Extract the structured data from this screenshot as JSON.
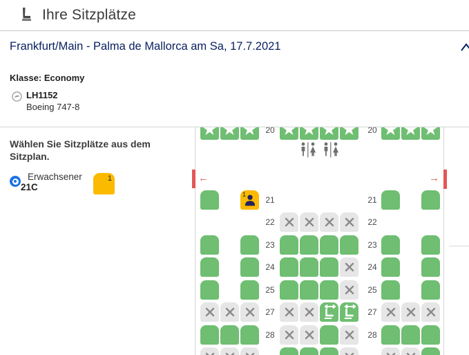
{
  "header": {
    "title": "Ihre Sitzplätze"
  },
  "flight_section": {
    "route": "Frankfurt/Main - Palma de Mallorca am Sa, 17.7.2021",
    "class_label": "Klasse: Economy",
    "flight_number": "LH1152",
    "aircraft": "Boeing 747-8"
  },
  "sidebar": {
    "instruction": "Wählen Sie Sitzplätze aus dem Sitzplan.",
    "passenger": {
      "type": "Erwachsener",
      "seat": "21C"
    },
    "seat_counter": "1"
  },
  "seatmap": {
    "selected_badge": "1",
    "legend": {
      "A": "available",
      "X": "blocked",
      "P": "selected",
      "S": "preferred-star",
      "L": "extra-legroom"
    },
    "rows": [
      {
        "type": "seats",
        "label": "20",
        "left": [
          "S",
          "S",
          "S"
        ],
        "mid": [
          "S",
          "S",
          "S",
          "S"
        ],
        "right": [
          "S",
          "S",
          "S"
        ]
      },
      {
        "type": "lavatory"
      },
      {
        "type": "exit"
      },
      {
        "type": "seats",
        "label": "21",
        "left": [
          "A",
          "-",
          "P"
        ],
        "mid": [
          "-",
          "-",
          "-",
          "-"
        ],
        "right": [
          "A",
          "-",
          "A"
        ]
      },
      {
        "type": "seats",
        "label": "22",
        "left": [
          "-",
          "-",
          "-"
        ],
        "mid": [
          "X",
          "X",
          "X",
          "X"
        ],
        "right": [
          "-",
          "-",
          "-"
        ]
      },
      {
        "type": "seats",
        "label": "23",
        "left": [
          "A",
          "-",
          "A"
        ],
        "mid": [
          "A",
          "A",
          "A",
          "A"
        ],
        "right": [
          "A",
          "-",
          "A"
        ]
      },
      {
        "type": "seats",
        "label": "24",
        "left": [
          "A",
          "-",
          "A"
        ],
        "mid": [
          "A",
          "A",
          "A",
          "X"
        ],
        "right": [
          "A",
          "-",
          "A"
        ]
      },
      {
        "type": "seats",
        "label": "25",
        "left": [
          "A",
          "-",
          "A"
        ],
        "mid": [
          "A",
          "A",
          "A",
          "X"
        ],
        "right": [
          "A",
          "-",
          "A"
        ]
      },
      {
        "type": "seats",
        "label": "27",
        "left": [
          "X",
          "X",
          "X"
        ],
        "mid": [
          "X",
          "X",
          "L",
          "L"
        ],
        "right": [
          "X",
          "X",
          "X"
        ]
      },
      {
        "type": "seats",
        "label": "28",
        "left": [
          "A",
          "A",
          "A"
        ],
        "mid": [
          "X",
          "X",
          "A",
          "X"
        ],
        "right": [
          "A",
          "A",
          "A"
        ]
      },
      {
        "type": "seats",
        "label": "",
        "left": [
          "X",
          "X",
          "X"
        ],
        "mid": [
          "A",
          "A",
          "A",
          "X"
        ],
        "right": [
          "X",
          "X",
          "A"
        ]
      }
    ]
  },
  "colors": {
    "green": "#6FBE72",
    "blocked_gray": "#E6E6E6",
    "x_stroke": "#8B8B8B",
    "selected_yellow": "#FBBA00",
    "person_navy": "#23235C",
    "exit_red": "#E25757",
    "navy_text": "#0B2161",
    "radio_blue": "#1A73E8"
  }
}
